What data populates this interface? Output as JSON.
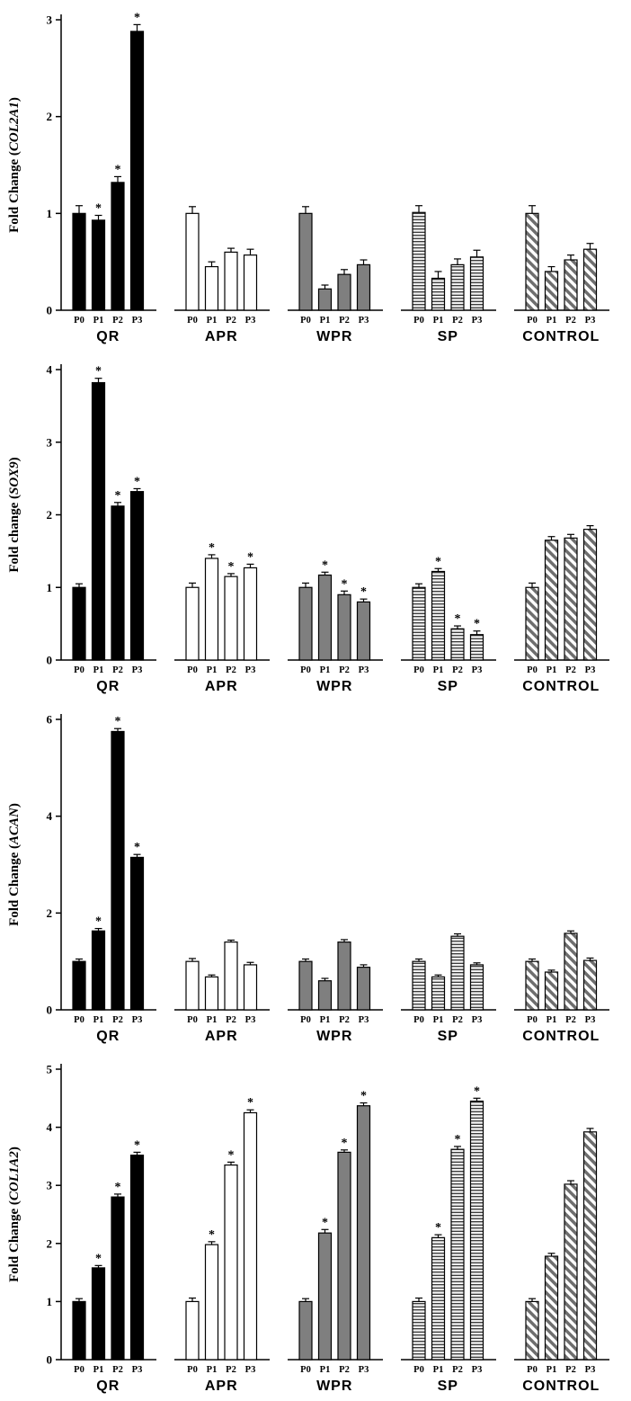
{
  "figure": {
    "background": "#ffffff",
    "axis_color": "#000000",
    "sig_marker": "*"
  },
  "groups": [
    "QR",
    "APR",
    "WPR",
    "SP",
    "CONTROL"
  ],
  "passages": [
    "P0",
    "P1",
    "P2",
    "P3"
  ],
  "bar_styles": {
    "QR": {
      "style": "solid",
      "fill": "#000000"
    },
    "APR": {
      "style": "open",
      "fill": "#ffffff"
    },
    "WPR": {
      "style": "solid",
      "fill": "#7f7f7f"
    },
    "SP": {
      "style": "horizontal-stripes",
      "fill": "#f2f2f2",
      "stripe": "#000000"
    },
    "CONTROL": {
      "style": "diagonal-stripes",
      "fill": "#ffffff",
      "stripe": "#6e6e6e"
    }
  },
  "chart_data": [
    {
      "type": "bar",
      "ylabel": "Fold Change",
      "gene": "COL2A1",
      "ylim": [
        0,
        3
      ],
      "yticks": [
        0,
        1,
        2,
        3
      ],
      "categories": [
        "P0",
        "P1",
        "P2",
        "P3"
      ],
      "series": [
        {
          "name": "QR",
          "values": [
            1.0,
            0.93,
            1.32,
            2.88
          ],
          "errors": [
            0.08,
            0.05,
            0.06,
            0.07
          ],
          "sig": [
            false,
            true,
            true,
            true
          ]
        },
        {
          "name": "APR",
          "values": [
            1.0,
            0.45,
            0.6,
            0.57
          ],
          "errors": [
            0.07,
            0.05,
            0.04,
            0.06
          ],
          "sig": [
            false,
            false,
            false,
            false
          ]
        },
        {
          "name": "WPR",
          "values": [
            1.0,
            0.22,
            0.37,
            0.47
          ],
          "errors": [
            0.07,
            0.04,
            0.05,
            0.05
          ],
          "sig": [
            false,
            false,
            false,
            false
          ]
        },
        {
          "name": "SP",
          "values": [
            1.01,
            0.33,
            0.47,
            0.55
          ],
          "errors": [
            0.07,
            0.07,
            0.06,
            0.07
          ],
          "sig": [
            false,
            false,
            false,
            false
          ]
        },
        {
          "name": "CONTROL",
          "values": [
            1.0,
            0.4,
            0.52,
            0.63
          ],
          "errors": [
            0.08,
            0.05,
            0.05,
            0.06
          ],
          "sig": [
            false,
            false,
            false,
            false
          ]
        }
      ]
    },
    {
      "type": "bar",
      "ylabel": "Fold change",
      "gene": "SOX9",
      "ylim": [
        0,
        4
      ],
      "yticks": [
        0,
        1,
        2,
        3,
        4
      ],
      "categories": [
        "P0",
        "P1",
        "P2",
        "P3"
      ],
      "series": [
        {
          "name": "QR",
          "values": [
            1.0,
            3.82,
            2.12,
            2.32
          ],
          "errors": [
            0.05,
            0.06,
            0.05,
            0.04
          ],
          "sig": [
            false,
            true,
            true,
            true
          ]
        },
        {
          "name": "APR",
          "values": [
            1.0,
            1.4,
            1.15,
            1.27
          ],
          "errors": [
            0.06,
            0.05,
            0.04,
            0.05
          ],
          "sig": [
            false,
            true,
            true,
            true
          ]
        },
        {
          "name": "WPR",
          "values": [
            1.0,
            1.17,
            0.9,
            0.8
          ],
          "errors": [
            0.06,
            0.04,
            0.05,
            0.04
          ],
          "sig": [
            false,
            true,
            true,
            true
          ]
        },
        {
          "name": "SP",
          "values": [
            1.0,
            1.22,
            0.43,
            0.35
          ],
          "errors": [
            0.05,
            0.04,
            0.04,
            0.05
          ],
          "sig": [
            false,
            true,
            true,
            true
          ]
        },
        {
          "name": "CONTROL",
          "values": [
            1.0,
            1.65,
            1.68,
            1.8
          ],
          "errors": [
            0.06,
            0.05,
            0.05,
            0.05
          ],
          "sig": [
            false,
            false,
            false,
            false
          ]
        }
      ]
    },
    {
      "type": "bar",
      "ylabel": "Fold Change",
      "gene": "ACAN",
      "ylim": [
        0,
        6
      ],
      "yticks": [
        0,
        2,
        4,
        6
      ],
      "categories": [
        "P0",
        "P1",
        "P2",
        "P3"
      ],
      "series": [
        {
          "name": "QR",
          "values": [
            1.0,
            1.63,
            5.75,
            3.15
          ],
          "errors": [
            0.05,
            0.05,
            0.06,
            0.06
          ],
          "sig": [
            false,
            true,
            true,
            true
          ]
        },
        {
          "name": "APR",
          "values": [
            1.0,
            0.68,
            1.4,
            0.93
          ],
          "errors": [
            0.06,
            0.04,
            0.04,
            0.05
          ],
          "sig": [
            false,
            false,
            false,
            false
          ]
        },
        {
          "name": "WPR",
          "values": [
            1.0,
            0.6,
            1.4,
            0.88
          ],
          "errors": [
            0.05,
            0.05,
            0.05,
            0.05
          ],
          "sig": [
            false,
            false,
            false,
            false
          ]
        },
        {
          "name": "SP",
          "values": [
            1.0,
            0.68,
            1.52,
            0.93
          ],
          "errors": [
            0.05,
            0.04,
            0.05,
            0.04
          ],
          "sig": [
            false,
            false,
            false,
            false
          ]
        },
        {
          "name": "CONTROL",
          "values": [
            1.0,
            0.78,
            1.58,
            1.02
          ],
          "errors": [
            0.05,
            0.04,
            0.05,
            0.05
          ],
          "sig": [
            false,
            false,
            false,
            false
          ]
        }
      ]
    },
    {
      "type": "bar",
      "ylabel": "Fold Change",
      "gene": "COL1A2",
      "ylim": [
        0,
        5
      ],
      "yticks": [
        0,
        1,
        2,
        3,
        4,
        5
      ],
      "categories": [
        "P0",
        "P1",
        "P2",
        "P3"
      ],
      "series": [
        {
          "name": "QR",
          "values": [
            1.0,
            1.58,
            2.8,
            3.52
          ],
          "errors": [
            0.05,
            0.04,
            0.05,
            0.05
          ],
          "sig": [
            false,
            true,
            true,
            true
          ]
        },
        {
          "name": "APR",
          "values": [
            1.0,
            1.98,
            3.35,
            4.25
          ],
          "errors": [
            0.06,
            0.05,
            0.05,
            0.05
          ],
          "sig": [
            false,
            true,
            true,
            true
          ]
        },
        {
          "name": "WPR",
          "values": [
            1.0,
            2.18,
            3.57,
            4.37
          ],
          "errors": [
            0.05,
            0.06,
            0.04,
            0.05
          ],
          "sig": [
            false,
            true,
            true,
            true
          ]
        },
        {
          "name": "SP",
          "values": [
            1.0,
            2.1,
            3.62,
            4.45
          ],
          "errors": [
            0.06,
            0.05,
            0.05,
            0.05
          ],
          "sig": [
            false,
            true,
            true,
            true
          ]
        },
        {
          "name": "CONTROL",
          "values": [
            1.0,
            1.78,
            3.02,
            3.92
          ],
          "errors": [
            0.05,
            0.05,
            0.06,
            0.06
          ],
          "sig": [
            false,
            false,
            false,
            false
          ]
        }
      ]
    }
  ]
}
